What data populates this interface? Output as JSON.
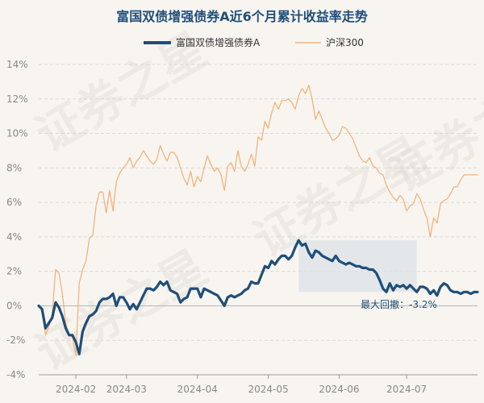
{
  "chart_data": {
    "type": "line",
    "title": "富国双债增强债券A近6个月累计收益率走势",
    "watermark": "证券之星",
    "colors": {
      "fund": "#1f4e79",
      "index": "#f2b37c",
      "drawdown": "#dde3e8",
      "grid": "#d9d9d9",
      "zero": "#bbbbbb"
    },
    "ylim": [
      -4,
      14
    ],
    "yticks": [
      "14%",
      "12%",
      "10%",
      "8%",
      "6%",
      "4%",
      "2%",
      "0%",
      "-2%",
      "-4%"
    ],
    "yticks_values": [
      14,
      12,
      10,
      8,
      6,
      4,
      2,
      0,
      -2,
      -4
    ],
    "xlim": [
      0,
      130
    ],
    "xticks": [
      {
        "label": "2024-02",
        "x": 11
      },
      {
        "label": "2024-03",
        "x": 26
      },
      {
        "label": "2024-04",
        "x": 47
      },
      {
        "label": "2024-05",
        "x": 68
      },
      {
        "label": "2024-06",
        "x": 89
      },
      {
        "label": "2024-07",
        "x": 109
      }
    ],
    "series": [
      {
        "name": "富国双债增强债券A",
        "x": [
          0,
          1,
          2,
          3,
          4,
          5,
          6,
          7,
          8,
          9,
          10,
          11,
          12,
          13,
          14,
          15,
          16,
          17,
          18,
          19,
          20,
          21,
          22,
          23,
          24,
          25,
          26,
          27,
          28,
          29,
          30,
          31,
          32,
          33,
          34,
          35,
          36,
          37,
          38,
          39,
          40,
          41,
          42,
          43,
          44,
          45,
          46,
          47,
          48,
          49,
          50,
          51,
          52,
          53,
          54,
          55,
          56,
          57,
          58,
          59,
          60,
          61,
          62,
          63,
          64,
          65,
          66,
          67,
          68,
          69,
          70,
          71,
          72,
          73,
          74,
          75,
          76,
          77,
          78,
          79,
          80,
          81,
          82,
          83,
          84,
          85,
          86,
          87,
          88,
          89,
          90,
          91,
          92,
          93,
          94,
          95,
          96,
          97,
          98,
          99,
          100,
          101,
          102,
          103,
          104,
          105,
          106,
          107,
          108,
          109,
          110,
          111,
          112,
          113,
          114,
          115,
          116,
          117,
          118,
          119,
          120,
          121,
          122,
          123,
          124,
          125,
          126,
          127,
          128,
          129,
          130
        ],
        "values": [
          0,
          -0.2,
          -1.3,
          -1.0,
          -0.7,
          0.2,
          -0.1,
          -0.6,
          -1.3,
          -1.7,
          -1.7,
          -2.1,
          -2.8,
          -1.5,
          -1.0,
          -0.6,
          -0.5,
          -0.3,
          0.2,
          0.4,
          0.4,
          0.5,
          0.7,
          0.0,
          0.5,
          0.5,
          0.2,
          -0.2,
          0.1,
          -0.2,
          0.2,
          0.6,
          1.0,
          1.0,
          0.9,
          1.1,
          1.4,
          1.2,
          1.4,
          0.9,
          0.8,
          0.7,
          0.2,
          0.4,
          0.5,
          1.0,
          1.0,
          1.0,
          0.5,
          1.0,
          0.9,
          0.8,
          0.7,
          0.6,
          0.3,
          0.0,
          0.5,
          0.6,
          0.5,
          0.6,
          0.7,
          0.9,
          1.0,
          1.4,
          1.3,
          1.3,
          1.8,
          2.3,
          2.2,
          2.6,
          2.4,
          2.7,
          2.9,
          2.9,
          2.7,
          2.9,
          3.4,
          3.8,
          3.5,
          3.6,
          3.1,
          2.8,
          3.2,
          3.1,
          2.9,
          2.8,
          2.7,
          2.6,
          2.9,
          2.6,
          2.5,
          2.4,
          2.5,
          2.4,
          2.3,
          2.3,
          2.2,
          2.2,
          2.1,
          2.1,
          1.9,
          1.5,
          1.0,
          0.8,
          1.3,
          0.9,
          1.2,
          1.1,
          1.2,
          1.0,
          1.2,
          1.0,
          0.8,
          1.1,
          1.1,
          1.0,
          0.7,
          0.9,
          0.6,
          1.1,
          1.3,
          1.2,
          0.9,
          0.8,
          0.8,
          0.7,
          0.8,
          0.8,
          0.7,
          0.8,
          0.8
        ],
        "style": "bold"
      },
      {
        "name": "沪深300",
        "x": [
          0,
          1,
          2,
          3,
          4,
          5,
          6,
          7,
          8,
          9,
          10,
          11,
          12,
          13,
          14,
          15,
          16,
          17,
          18,
          19,
          20,
          21,
          22,
          23,
          24,
          25,
          26,
          27,
          28,
          29,
          30,
          31,
          32,
          33,
          34,
          35,
          36,
          37,
          38,
          39,
          40,
          41,
          42,
          43,
          44,
          45,
          46,
          47,
          48,
          49,
          50,
          51,
          52,
          53,
          54,
          55,
          56,
          57,
          58,
          59,
          60,
          61,
          62,
          63,
          64,
          65,
          66,
          67,
          68,
          69,
          70,
          71,
          72,
          73,
          74,
          75,
          76,
          77,
          78,
          79,
          80,
          81,
          82,
          83,
          84,
          85,
          86,
          87,
          88,
          89,
          90,
          91,
          92,
          93,
          94,
          95,
          96,
          97,
          98,
          99,
          100,
          101,
          102,
          103,
          104,
          105,
          106,
          107,
          108,
          109,
          110,
          111,
          112,
          113,
          114,
          115,
          116,
          117,
          118,
          119,
          120,
          121,
          122,
          123,
          124,
          125,
          126,
          127,
          128,
          129,
          130
        ],
        "values": [
          0,
          -0.3,
          -1.7,
          -1.2,
          -0.5,
          2.1,
          1.9,
          0.7,
          -1.0,
          -1.7,
          -1.8,
          -2.9,
          1.3,
          2.1,
          2.6,
          3.9,
          4.1,
          5.8,
          6.6,
          6.6,
          5.4,
          6.7,
          5.5,
          7.2,
          7.7,
          8.0,
          8.2,
          8.6,
          8.0,
          8.4,
          8.6,
          9.0,
          8.7,
          8.4,
          8.2,
          8.5,
          9.3,
          8.8,
          8.4,
          8.9,
          8.9,
          8.6,
          8.0,
          7.4,
          7.0,
          7.8,
          6.9,
          7.5,
          7.2,
          8.0,
          8.7,
          8.2,
          7.8,
          8.0,
          7.6,
          6.7,
          8.1,
          8.3,
          7.8,
          9.0,
          8.1,
          7.8,
          8.2,
          8.8,
          8.1,
          9.8,
          9.6,
          10.7,
          10.3,
          11.2,
          11.8,
          11.4,
          11.9,
          11.9,
          12.0,
          11.8,
          11.4,
          12.2,
          12.6,
          12.3,
          12.8,
          12.0,
          10.8,
          11.3,
          10.8,
          10.3,
          10.0,
          9.6,
          9.7,
          9.9,
          10.4,
          10.3,
          10.0,
          9.7,
          9.2,
          8.7,
          8.4,
          8.3,
          8.6,
          8.1,
          8.0,
          7.7,
          7.6,
          7.0,
          6.6,
          6.3,
          6.1,
          6.4,
          6.2,
          5.5,
          5.8,
          5.9,
          6.5,
          6.2,
          5.6,
          5.1,
          4.0,
          5.1,
          4.8,
          5.9,
          6.1,
          6.2,
          6.5,
          6.9,
          6.9,
          7.3,
          7.6,
          7.6,
          7.6,
          7.6,
          7.6
        ],
        "style": "thin"
      }
    ],
    "max_drawdown": {
      "label": "最大回撤：-3.2%",
      "start_x": 77,
      "end_x": 112
    },
    "legend": "top-center"
  }
}
